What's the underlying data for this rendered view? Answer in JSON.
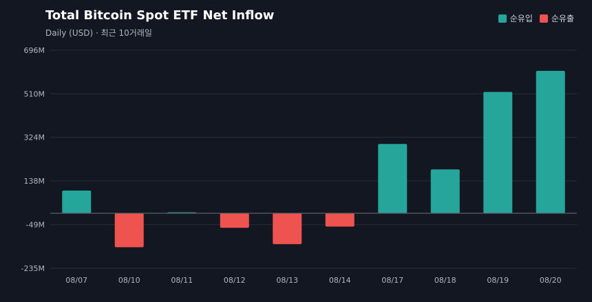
{
  "chart_data": {
    "type": "bar",
    "title": "Total Bitcoin Spot ETF Net Inflow",
    "subtitle": "Daily (USD) · 최근 10거래일",
    "categories": [
      "08/07",
      "08/10",
      "08/11",
      "08/12",
      "08/13",
      "08/14",
      "08/17",
      "08/18",
      "08/19",
      "08/20"
    ],
    "values": [
      97,
      -145,
      4,
      -62,
      -132,
      -57,
      296,
      187,
      518,
      608
    ],
    "yticks": [
      "696M",
      "510M",
      "324M",
      "138M",
      "-49M",
      "-235M"
    ],
    "ytick_values": [
      696,
      510,
      324,
      138,
      -49,
      -235
    ],
    "ylim": [
      -235,
      696
    ],
    "unit": "M USD",
    "grid": true,
    "legend_position": "top-right",
    "legend": [
      {
        "label": "순유입",
        "color": "#26a69a"
      },
      {
        "label": "순유출",
        "color": "#ef5350"
      }
    ],
    "colors": {
      "positive": "#26a69a",
      "negative": "#ef5350",
      "grid": "#2a2e39",
      "zero_line": "#5d606b",
      "background": "#131722"
    }
  }
}
